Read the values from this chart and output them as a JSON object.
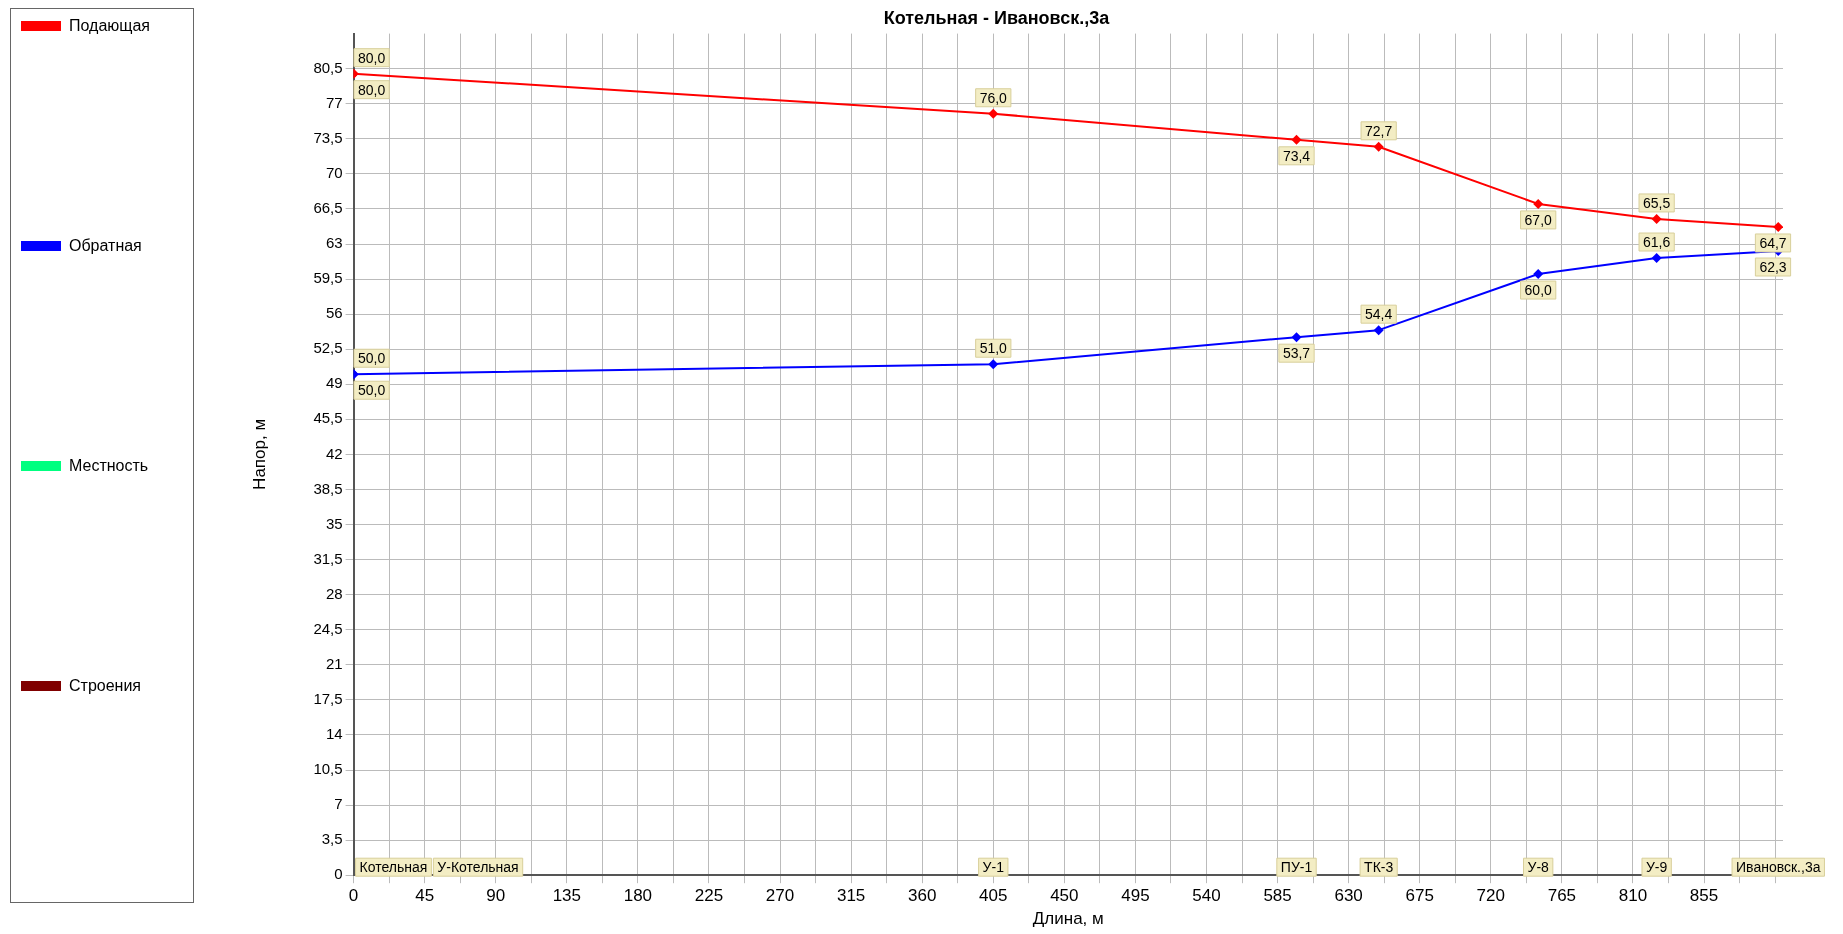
{
  "chart_data": {
    "type": "line",
    "title": "Котельная - Ивановск.,3а",
    "xlabel": "Длина, м",
    "ylabel": "Напор, м",
    "x": [
      0,
      0,
      405,
      597,
      649,
      750,
      825,
      902
    ],
    "series": [
      {
        "name": "Подающая",
        "color": "#ff0000",
        "values": [
          80.0,
          80.0,
          76.0,
          73.4,
          72.7,
          67.0,
          65.5,
          64.7
        ],
        "value_labels": [
          "80,0",
          "80,0",
          "76,0",
          "73,4",
          "72,7",
          "67,0",
          "65,5",
          "64,7"
        ]
      },
      {
        "name": "Обратная",
        "color": "#0000ff",
        "values": [
          50.0,
          50.0,
          51.0,
          53.7,
          54.4,
          60.0,
          61.6,
          62.3
        ],
        "value_labels": [
          "50,0",
          "50,0",
          "51,0",
          "53,7",
          "54,4",
          "60,0",
          "61,6",
          "62,3"
        ]
      },
      {
        "name": "Местность",
        "color": "#00ff80",
        "values": [
          null,
          null,
          null,
          null,
          null,
          null,
          null,
          null
        ]
      },
      {
        "name": "Строения",
        "color": "#800000",
        "values": [
          null,
          null,
          null,
          null,
          null,
          null,
          null,
          null
        ]
      }
    ],
    "xlim": [
      0,
      905
    ],
    "ylim": [
      0,
      84
    ],
    "xticks": [
      0,
      {
        "value": 22.5,
        "label": null
      },
      45,
      {
        "value": 67.5,
        "label": null
      },
      90,
      {
        "value": 112.5,
        "label": null
      },
      135,
      {
        "value": 157.5,
        "label": null
      },
      180,
      {
        "value": 202.5,
        "label": null
      },
      225,
      {
        "value": 247.5,
        "label": null
      },
      270,
      {
        "value": 292.5,
        "label": null
      },
      315,
      {
        "value": 337.5,
        "label": null
      },
      360,
      {
        "value": 382.5,
        "label": null
      },
      405,
      {
        "value": 427.5,
        "label": null
      },
      450,
      {
        "value": 472.5,
        "label": null
      },
      495,
      {
        "value": 517.5,
        "label": null
      },
      540,
      {
        "value": 562.5,
        "label": null
      },
      585,
      {
        "value": 607.5,
        "label": null
      },
      630,
      {
        "value": 652.5,
        "label": null
      },
      675,
      {
        "value": 697.5,
        "label": null
      },
      720,
      {
        "value": 742.5,
        "label": null
      },
      765,
      {
        "value": 787.5,
        "label": null
      },
      810,
      {
        "value": 832.5,
        "label": null
      },
      855,
      {
        "value": 877.5,
        "label": null
      },
      {
        "value": 900,
        "label": null
      }
    ],
    "yticks": [
      0,
      {
        "value": 3.5,
        "label": "3,5"
      },
      7,
      {
        "value": 10.5,
        "label": "10,5"
      },
      14,
      {
        "value": 17.5,
        "label": "17,5"
      },
      21,
      {
        "value": 24.5,
        "label": "24,5"
      },
      28,
      {
        "value": 31.5,
        "label": "31,5"
      },
      35,
      {
        "value": 38.5,
        "label": "38,5"
      },
      42,
      {
        "value": 45.5,
        "label": "45,5"
      },
      49,
      {
        "value": 52.5,
        "label": "52,5"
      },
      56,
      {
        "value": 59.5,
        "label": "59,5"
      },
      63,
      {
        "value": 66.5,
        "label": "66,5"
      },
      70,
      {
        "value": 73.5,
        "label": "73,5"
      },
      77,
      {
        "value": 80.5,
        "label": "80,5"
      }
    ],
    "annotations": [
      "Котельная",
      "У-Котельная",
      "У-1",
      "ПУ-1",
      "ТК-3",
      "У-8",
      "У-9",
      "Ивановск.,3а"
    ],
    "grid": true,
    "legend": "left",
    "marker": "diamond",
    "line_style": "solid"
  }
}
